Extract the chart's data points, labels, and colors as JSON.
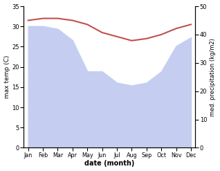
{
  "months": [
    "Jan",
    "Feb",
    "Mar",
    "Apr",
    "May",
    "Jun",
    "Jul",
    "Aug",
    "Sep",
    "Oct",
    "Nov",
    "Dec"
  ],
  "month_positions": [
    0,
    1,
    2,
    3,
    4,
    5,
    6,
    7,
    8,
    9,
    10,
    11
  ],
  "max_temp": [
    31.5,
    32.0,
    32.0,
    31.5,
    30.5,
    28.5,
    27.5,
    26.5,
    27.0,
    28.0,
    29.5,
    30.5
  ],
  "precipitation": [
    43,
    43,
    42,
    38,
    27,
    27,
    23,
    22,
    23,
    27,
    36,
    39
  ],
  "temp_color": "#c0504d",
  "precip_fill_color": "#c5cef0",
  "xlabel": "date (month)",
  "ylabel_left": "max temp (C)",
  "ylabel_right": "med. precipitation (kg/m2)",
  "ylim_left": [
    0,
    35
  ],
  "ylim_right": [
    0,
    50
  ],
  "yticks_left": [
    0,
    5,
    10,
    15,
    20,
    25,
    30,
    35
  ],
  "yticks_right": [
    0,
    10,
    20,
    30,
    40,
    50
  ],
  "background_color": "#ffffff"
}
